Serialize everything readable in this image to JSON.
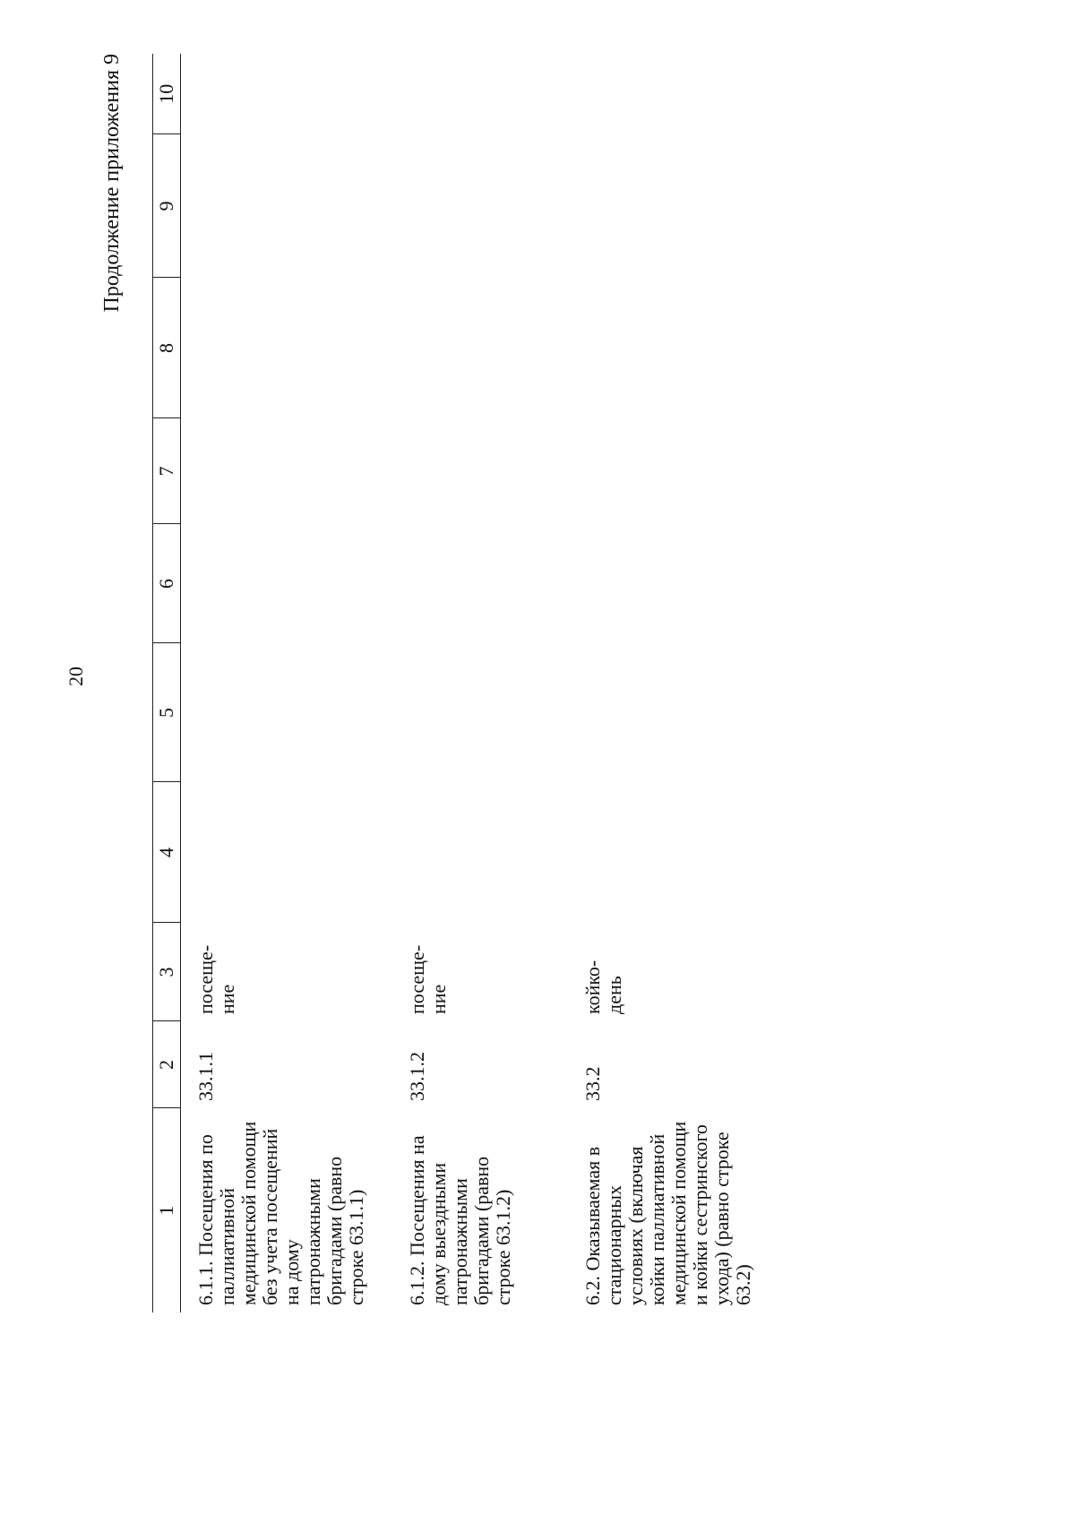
{
  "header": {
    "title": "20",
    "subtitle": "Продолжение приложения 9"
  },
  "table": {
    "columns": [
      "1",
      "2",
      "3",
      "4",
      "5",
      "6",
      "7",
      "8",
      "9",
      "10"
    ],
    "rows": [
      [
        "6.1.1. Посещения по паллиативной медицинской помощи без учета посещений на дому патронажными бригадами (равно строке 63.1.1)",
        "33.1.1",
        "посеще-\nние"
      ],
      [
        "6.1.2. Посещения на дому выездными патронажными бригадами (равно строке 63.1.2)",
        "33.1.2",
        "посеще-\nние"
      ],
      [
        "6.2. Оказываемая в стационарных условиях (включая койки паллиативной медицинской помощи и койки сестринского ухода) (равно строке 63.2)",
        "33.2",
        "койко-\nдень"
      ]
    ]
  }
}
